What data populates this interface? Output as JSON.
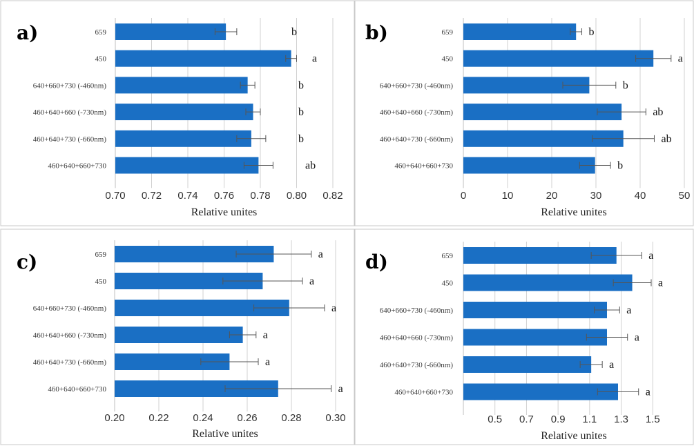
{
  "chart_data": [
    {
      "panel": "a)",
      "type": "bar",
      "orientation": "horizontal",
      "categories": [
        "659",
        "450",
        "640+660+730 (-460nm)",
        "460+640+660 (-730nm)",
        "460+640+730 (-660nm)",
        "460+640+660+730"
      ],
      "values": [
        0.761,
        0.797,
        0.773,
        0.776,
        0.775,
        0.779
      ],
      "errors": [
        0.006,
        0.003,
        0.004,
        0.004,
        0.008,
        0.008
      ],
      "significance": [
        "b",
        "a",
        "b",
        "b",
        "b",
        "ab"
      ],
      "xlabel": "Relative unites",
      "xlim": [
        0.7,
        0.82
      ],
      "xticks": [
        "0.70",
        "0.72",
        "0.74",
        "0.76",
        "0.78",
        "0.80",
        "0.82"
      ],
      "grid": "vertical"
    },
    {
      "panel": "b)",
      "type": "bar",
      "orientation": "horizontal",
      "categories": [
        "659",
        "450",
        "640+660+730 (-460nm)",
        "460+640+660 (-730nm)",
        "460+640+730 (-660nm)",
        "460+640+660+730"
      ],
      "values": [
        25.5,
        43,
        28.5,
        35.8,
        36.2,
        29.8
      ],
      "errors": [
        1.3,
        4,
        6,
        5.5,
        7,
        3.5
      ],
      "significance": [
        "b",
        "a",
        "b",
        "ab",
        "ab",
        "b"
      ],
      "xlabel": "Relative unites",
      "xlim": [
        0,
        50
      ],
      "xticks": [
        "0",
        "10",
        "20",
        "30",
        "40",
        "50"
      ],
      "grid": "vertical"
    },
    {
      "panel": "c)",
      "type": "bar",
      "orientation": "horizontal",
      "categories": [
        "659",
        "450",
        "640+660+730 (-460nm)",
        "460+640+660 (-730nm)",
        "460+640+730 (-660nm)",
        "460+640+660+730"
      ],
      "values": [
        0.272,
        0.267,
        0.279,
        0.258,
        0.252,
        0.274
      ],
      "errors": [
        0.017,
        0.018,
        0.016,
        0.006,
        0.013,
        0.024
      ],
      "significance": [
        "a",
        "a",
        "a",
        "a",
        "a",
        "a"
      ],
      "xlabel": "Relative unites",
      "xlim": [
        0.2,
        0.3
      ],
      "xticks": [
        "0.20",
        "0.22",
        "0.24",
        "0.26",
        "0.28",
        "0.30"
      ],
      "grid": "vertical"
    },
    {
      "panel": "d)",
      "type": "bar",
      "orientation": "horizontal",
      "categories": [
        "659",
        "450",
        "640+660+730 (-460nm)",
        "460+640+660 (-730nm)",
        "460+640+730 (-660nm)",
        "460+640+660+730"
      ],
      "values": [
        1.27,
        1.37,
        1.21,
        1.21,
        1.11,
        1.28
      ],
      "errors": [
        0.16,
        0.12,
        0.08,
        0.13,
        0.07,
        0.13
      ],
      "significance": [
        "a",
        "a",
        "a",
        "a",
        "a",
        "a"
      ],
      "xlabel": "Relative unites",
      "xlim": [
        0.3,
        1.7
      ],
      "xticks": [
        "0.5",
        "0.7",
        "0.9",
        "1.1",
        "1.3",
        "1.5"
      ],
      "xtick_values": [
        0.5,
        0.7,
        0.9,
        1.1,
        1.3,
        1.5
      ],
      "grid": "vertical"
    }
  ],
  "colors": {
    "bar": "#1a6fc4",
    "error_bar": "#555555",
    "gridline": "#d0d0d0"
  }
}
